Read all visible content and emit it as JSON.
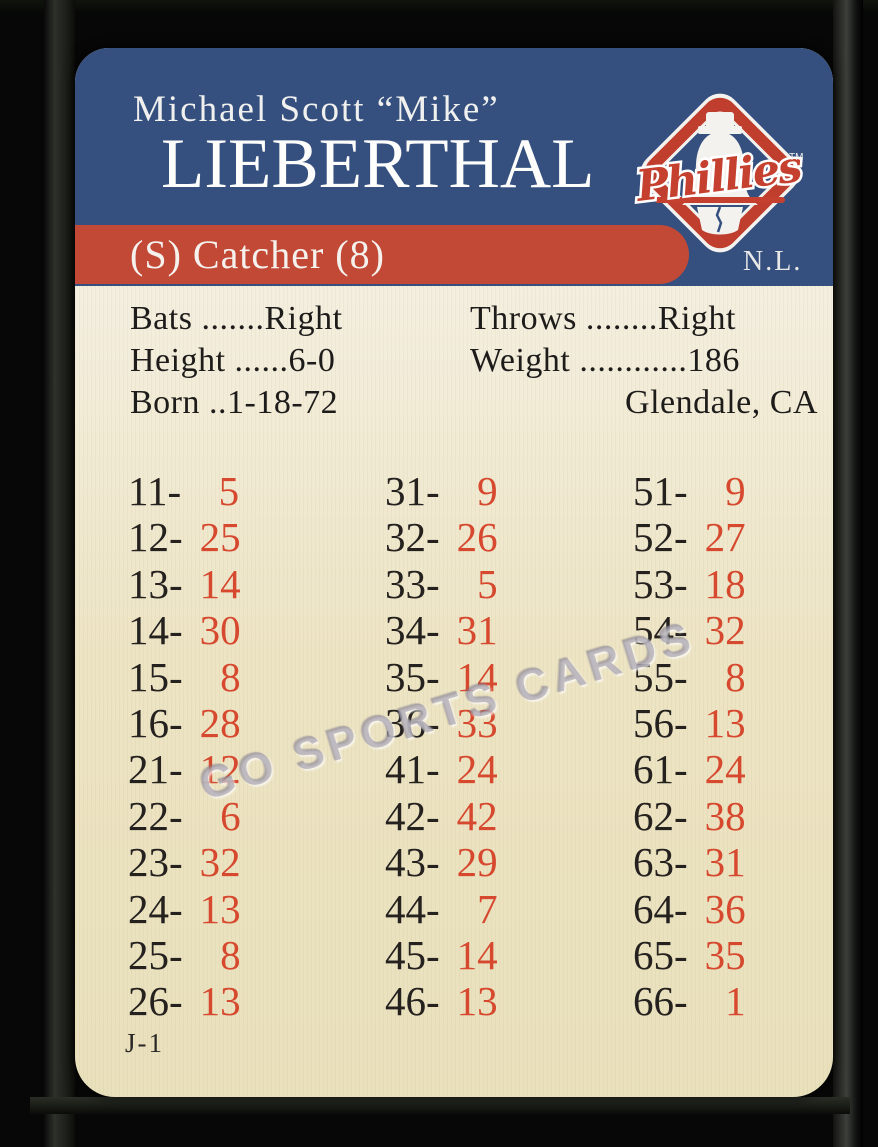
{
  "card": {
    "header": {
      "name_line1": "Michael Scott “Mike”",
      "name_line2": "LIEBERTHAL",
      "position_line": "(S) Catcher (8)",
      "league": "N.L.",
      "logo": {
        "team_script": "Phillies",
        "trademark": "TM"
      }
    },
    "stats": {
      "left": [
        "Bats .......Right",
        "Height ......6-0",
        "Born ..1-18-72"
      ],
      "right": [
        "Throws ........Right",
        "Weight ............186",
        "Glendale, CA"
      ]
    },
    "roll_table": {
      "columns": [
        {
          "rolls": [
            "11",
            "12",
            "13",
            "14",
            "15",
            "16",
            "21",
            "22",
            "23",
            "24",
            "25",
            "26"
          ],
          "values": [
            "5",
            "25",
            "14",
            "30",
            "8",
            "28",
            "12",
            "6",
            "32",
            "13",
            "8",
            "13"
          ]
        },
        {
          "rolls": [
            "31",
            "32",
            "33",
            "34",
            "35",
            "36",
            "41",
            "42",
            "43",
            "44",
            "45",
            "46"
          ],
          "values": [
            "9",
            "26",
            "5",
            "31",
            "14",
            "33",
            "24",
            "42",
            "29",
            "7",
            "14",
            "13"
          ]
        },
        {
          "rolls": [
            "51",
            "52",
            "53",
            "54",
            "55",
            "56",
            "61",
            "62",
            "63",
            "64",
            "65",
            "66"
          ],
          "values": [
            "9",
            "27",
            "18",
            "32",
            "8",
            "13",
            "24",
            "38",
            "31",
            "36",
            "35",
            "1"
          ]
        }
      ]
    },
    "watermark": "GO SPORTS CARDS",
    "card_code": "J-1",
    "colors": {
      "header_blue": "#35507f",
      "band_red": "#c14936",
      "value_red": "#d6492f",
      "cream": "#ede4c4"
    }
  }
}
